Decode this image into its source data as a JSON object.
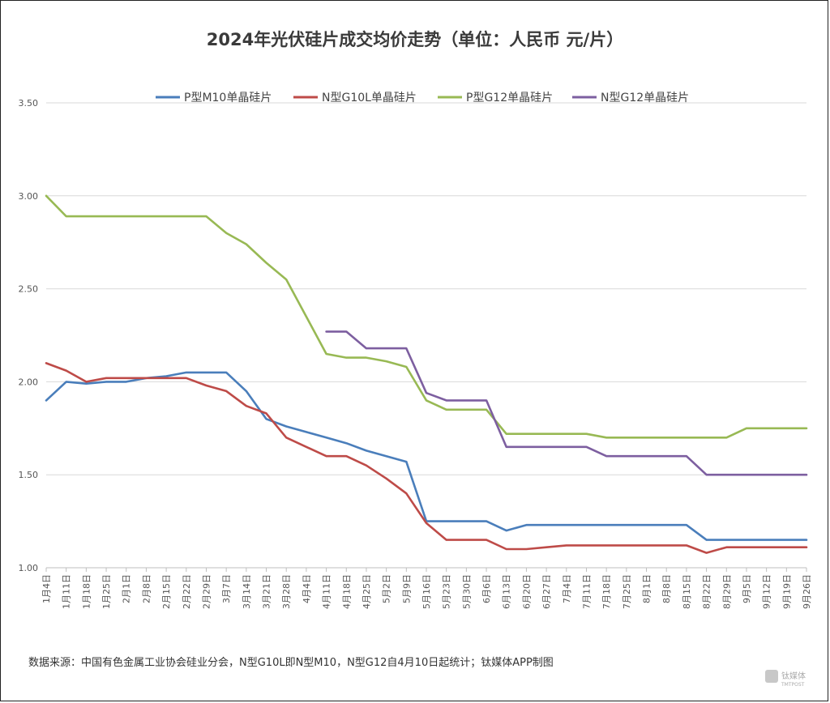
{
  "chart_data": {
    "type": "line",
    "title": "2024年光伏硅片成交均价走势（单位：人民币 元/片）",
    "ylim": [
      1.0,
      3.5
    ],
    "yticks": [
      "1.00",
      "1.50",
      "2.00",
      "2.50",
      "3.00",
      "3.50"
    ],
    "grid": true,
    "legend_position": "top",
    "x": [
      "1月4日",
      "1月11日",
      "1月18日",
      "1月25日",
      "2月1日",
      "2月8日",
      "2月15日",
      "2月22日",
      "2月29日",
      "3月7日",
      "3月14日",
      "3月21日",
      "3月28日",
      "4月4日",
      "4月11日",
      "4月18日",
      "4月25日",
      "5月2日",
      "5月9日",
      "5月16日",
      "5月23日",
      "5月30日",
      "6月6日",
      "6月13日",
      "6月20日",
      "6月27日",
      "7月4日",
      "7月11日",
      "7月18日",
      "7月25日",
      "8月1日",
      "8月8日",
      "8月15日",
      "8月22日",
      "8月29日",
      "9月5日",
      "9月12日",
      "9月19日",
      "9月26日"
    ],
    "series": [
      {
        "name": "P型M10单晶硅片",
        "color": "#4a7ebb",
        "values": [
          1.9,
          2.0,
          1.99,
          2.0,
          2.0,
          2.02,
          2.03,
          2.05,
          2.05,
          2.05,
          1.95,
          1.8,
          1.76,
          1.73,
          1.7,
          1.67,
          1.63,
          1.6,
          1.57,
          1.25,
          1.25,
          1.25,
          1.25,
          1.2,
          1.23,
          1.23,
          1.23,
          1.23,
          1.23,
          1.23,
          1.23,
          1.23,
          1.23,
          1.15,
          1.15,
          1.15,
          1.15,
          1.15,
          1.15
        ]
      },
      {
        "name": "N型G10L单晶硅片",
        "color": "#be4b48",
        "values": [
          2.1,
          2.06,
          2.0,
          2.02,
          2.02,
          2.02,
          2.02,
          2.02,
          1.98,
          1.95,
          1.87,
          1.83,
          1.7,
          1.65,
          1.6,
          1.6,
          1.55,
          1.48,
          1.4,
          1.24,
          1.15,
          1.15,
          1.15,
          1.1,
          1.1,
          1.11,
          1.12,
          1.12,
          1.12,
          1.12,
          1.12,
          1.12,
          1.12,
          1.08,
          1.11,
          1.11,
          1.11,
          1.11,
          1.11
        ]
      },
      {
        "name": "P型G12单晶硅片",
        "color": "#98b954",
        "values": [
          3.0,
          2.89,
          2.89,
          2.89,
          2.89,
          2.89,
          2.89,
          2.89,
          2.89,
          2.8,
          2.74,
          2.64,
          2.55,
          2.35,
          2.15,
          2.13,
          2.13,
          2.11,
          2.08,
          1.9,
          1.85,
          1.85,
          1.85,
          1.72,
          1.72,
          1.72,
          1.72,
          1.72,
          1.7,
          1.7,
          1.7,
          1.7,
          1.7,
          1.7,
          1.7,
          1.75,
          1.75,
          1.75,
          1.75
        ]
      },
      {
        "name": "N型G12单晶硅片",
        "color": "#7d5fa0",
        "values": [
          null,
          null,
          null,
          null,
          null,
          null,
          null,
          null,
          null,
          null,
          null,
          null,
          null,
          null,
          2.27,
          2.27,
          2.18,
          2.18,
          2.18,
          1.94,
          1.9,
          1.9,
          1.9,
          1.65,
          1.65,
          1.65,
          1.65,
          1.65,
          1.6,
          1.6,
          1.6,
          1.6,
          1.6,
          1.5,
          1.5,
          1.5,
          1.5,
          1.5,
          1.5
        ]
      }
    ]
  },
  "footer": {
    "source": "数据来源：中国有色金属工业协会硅业分会，N型G10L即N型M10，N型G12自4月10日起统计；钛媒体APP制图",
    "watermark_text": "钛媒体",
    "watermark_sub": "TMTPOST"
  }
}
